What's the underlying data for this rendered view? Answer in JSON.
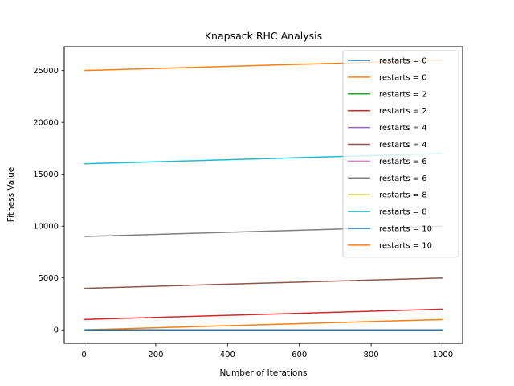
{
  "chart_data": {
    "type": "line",
    "title": "Knapsack RHC Analysis",
    "xlabel": "Number of Iterations",
    "ylabel": "Fitness Value",
    "xlim": [
      -55,
      1055
    ],
    "ylim": [
      -1300,
      27300
    ],
    "xticks": [
      0,
      200,
      400,
      600,
      800,
      1000
    ],
    "yticks": [
      0,
      5000,
      10000,
      15000,
      20000,
      25000
    ],
    "grid": false,
    "legend_position": "top-right",
    "series": [
      {
        "name": "restarts = 0",
        "color": "#1f77b4",
        "x": [
          0,
          1000
        ],
        "y": [
          0,
          0
        ]
      },
      {
        "name": "restarts = 0",
        "color": "#ff7f0e",
        "x": [
          0,
          1000
        ],
        "y": [
          0,
          1000
        ]
      },
      {
        "name": "restarts = 2",
        "color": "#2ca02c",
        "x": [
          0,
          1000
        ],
        "y": [
          0,
          0
        ]
      },
      {
        "name": "restarts = 2",
        "color": "#d62728",
        "x": [
          0,
          1000
        ],
        "y": [
          1000,
          2000
        ]
      },
      {
        "name": "restarts = 4",
        "color": "#9467bd",
        "x": [
          0,
          1000
        ],
        "y": [
          0,
          0
        ]
      },
      {
        "name": "restarts = 4",
        "color": "#8c564b",
        "x": [
          0,
          1000
        ],
        "y": [
          4000,
          5000
        ]
      },
      {
        "name": "restarts = 6",
        "color": "#e377c2",
        "x": [
          0,
          1000
        ],
        "y": [
          0,
          0
        ]
      },
      {
        "name": "restarts = 6",
        "color": "#7f7f7f",
        "x": [
          0,
          1000
        ],
        "y": [
          9000,
          10000
        ]
      },
      {
        "name": "restarts = 8",
        "color": "#bcbd22",
        "x": [
          0,
          1000
        ],
        "y": [
          0,
          0
        ]
      },
      {
        "name": "restarts = 8",
        "color": "#17becf",
        "x": [
          0,
          1000
        ],
        "y": [
          16000,
          17000
        ]
      },
      {
        "name": "restarts = 10",
        "color": "#1f77b4",
        "x": [
          0,
          1000
        ],
        "y": [
          0,
          0
        ]
      },
      {
        "name": "restarts = 10",
        "color": "#ff7f0e",
        "x": [
          0,
          1000
        ],
        "y": [
          25000,
          26000
        ]
      }
    ]
  }
}
